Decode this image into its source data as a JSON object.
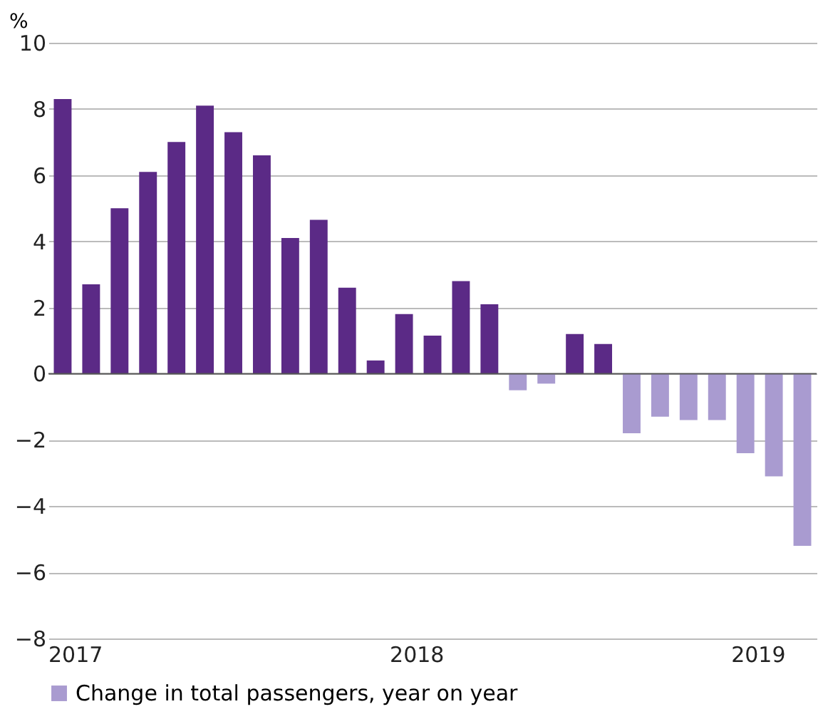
{
  "chart_data": {
    "type": "bar",
    "ylabel": "%",
    "categories": [
      "2017",
      null,
      null,
      null,
      null,
      null,
      null,
      null,
      null,
      null,
      null,
      null,
      "2018",
      null,
      null,
      null,
      null,
      null,
      null,
      null,
      null,
      null,
      null,
      null,
      "2019",
      null,
      null
    ],
    "series": [
      {
        "name": "Change in total passengers, year on year",
        "color": "#a99bd0",
        "colors": [
          "#5b2a86",
          "#5b2a86",
          "#5b2a86",
          "#5b2a86",
          "#5b2a86",
          "#5b2a86",
          "#5b2a86",
          "#5b2a86",
          "#5b2a86",
          "#5b2a86",
          "#5b2a86",
          "#5b2a86",
          "#5b2a86",
          "#5b2a86",
          "#5b2a86",
          "#5b2a86",
          "#a99bd0",
          "#a99bd0",
          "#5b2a86",
          "#5b2a86",
          "#a99bd0",
          "#a99bd0",
          "#a99bd0",
          "#a99bd0",
          "#a99bd0",
          "#a99bd0",
          "#a99bd0"
        ],
        "values": [
          8.3,
          2.7,
          5.0,
          6.1,
          7.0,
          8.1,
          7.3,
          6.6,
          4.1,
          4.65,
          2.6,
          0.4,
          1.8,
          1.15,
          2.8,
          2.1,
          -0.5,
          -0.3,
          1.2,
          0.9,
          -1.8,
          -1.3,
          -1.4,
          -1.4,
          -2.4,
          -3.1,
          -5.2
        ]
      }
    ],
    "ylim": [
      -8,
      10
    ],
    "yticks": [
      -8,
      -6,
      -4,
      -2,
      0,
      2,
      4,
      6,
      8,
      10
    ],
    "grid": "y",
    "legend": "bottom"
  }
}
